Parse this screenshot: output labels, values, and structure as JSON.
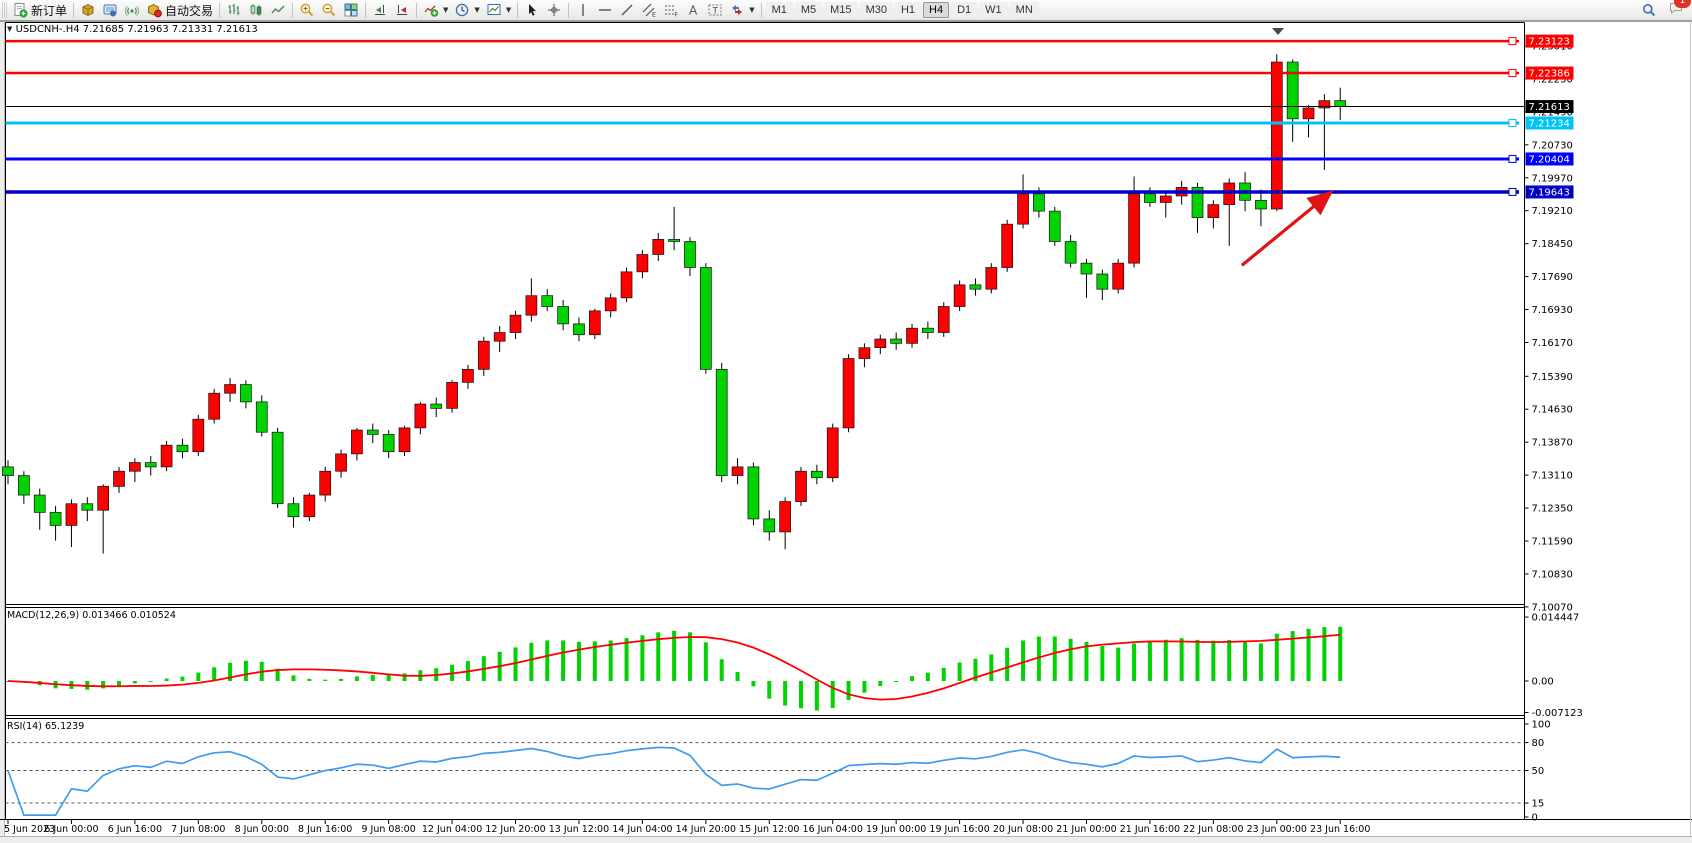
{
  "toolbar": {
    "new_order": "新订单",
    "auto_trading": "自动交易",
    "timeframes": [
      "M1",
      "M5",
      "M15",
      "M30",
      "H1",
      "H4",
      "D1",
      "W1",
      "MN"
    ],
    "active_timeframe": "H4",
    "notification_badge": "1"
  },
  "chart_data": [
    {
      "type": "candlestick",
      "symbol": "USDCNH-.H4",
      "timeframe": "H4",
      "ohlc_line": "7.21685 7.21963 7.21331 7.21613",
      "up_color": "#ff0000",
      "down_color": "#00d300",
      "y_ticks": [
        "7.23010",
        "7.22250",
        "7.21490",
        "7.20730",
        "7.19970",
        "7.19210",
        "7.18450",
        "7.17690",
        "7.16930",
        "7.16170",
        "7.15390",
        "7.14630",
        "7.13870",
        "7.13110",
        "7.12350",
        "7.11590",
        "7.10830",
        "7.10070"
      ],
      "x_labels": [
        "5 Jun 2023",
        "6 Jun 00:00",
        "6 Jun 16:00",
        "7 Jun 08:00",
        "8 Jun 00:00",
        "8 Jun 16:00",
        "9 Jun 08:00",
        "12 Jun 04:00",
        "12 Jun 20:00",
        "13 Jun 12:00",
        "14 Jun 04:00",
        "14 Jun 20:00",
        "15 Jun 12:00",
        "16 Jun 04:00",
        "19 Jun 00:00",
        "19 Jun 16:00",
        "20 Jun 08:00",
        "21 Jun 00:00",
        "21 Jun 16:00",
        "22 Jun 08:00",
        "23 Jun 00:00",
        "23 Jun 16:00"
      ],
      "hlines": [
        {
          "price": 7.23123,
          "label": "7.23123",
          "color": "#ff0000",
          "stroke_width": 2.5
        },
        {
          "price": 7.22386,
          "label": "7.22386",
          "color": "#ff0000",
          "stroke_width": 2.5
        },
        {
          "price": 7.21234,
          "label": "7.21234",
          "color": "#00c3f5",
          "stroke_width": 3
        },
        {
          "price": 7.20404,
          "label": "7.20404",
          "color": "#0000ff",
          "stroke_width": 3
        },
        {
          "price": 7.19643,
          "label": "7.19643",
          "color": "#0000c8",
          "stroke_width": 3.5
        }
      ],
      "bid": {
        "price": 7.21613,
        "label": "7.21613",
        "color": "#000000"
      },
      "arrow": {
        "color": "#e01414",
        "from_bar": 77.8,
        "from_price": 7.1795,
        "to_bar": 83.4,
        "to_price": 7.1963
      },
      "candles": [
        [
          7.133,
          7.1345,
          7.129,
          7.131
        ],
        [
          7.131,
          7.132,
          7.1245,
          7.1265
        ],
        [
          7.1265,
          7.128,
          7.1185,
          7.1225
        ],
        [
          7.1225,
          7.124,
          7.116,
          7.1195
        ],
        [
          7.1195,
          7.1255,
          7.1145,
          7.1245
        ],
        [
          7.1245,
          7.126,
          7.1205,
          7.123
        ],
        [
          7.123,
          7.129,
          7.113,
          7.1285
        ],
        [
          7.1285,
          7.133,
          7.127,
          7.132
        ],
        [
          7.132,
          7.135,
          7.1295,
          7.134
        ],
        [
          7.134,
          7.1355,
          7.131,
          7.133
        ],
        [
          7.133,
          7.139,
          7.132,
          7.138
        ],
        [
          7.138,
          7.1395,
          7.135,
          7.1365
        ],
        [
          7.1365,
          7.145,
          7.1355,
          7.144
        ],
        [
          7.144,
          7.151,
          7.143,
          7.15
        ],
        [
          7.15,
          7.1535,
          7.148,
          7.152
        ],
        [
          7.152,
          7.153,
          7.1465,
          7.148
        ],
        [
          7.148,
          7.1495,
          7.14,
          7.141
        ],
        [
          7.141,
          7.142,
          7.1235,
          7.1245
        ],
        [
          7.1245,
          7.126,
          7.119,
          7.1215
        ],
        [
          7.1215,
          7.127,
          7.1205,
          7.1265
        ],
        [
          7.1265,
          7.133,
          7.125,
          7.132
        ],
        [
          7.132,
          7.137,
          7.1305,
          7.136
        ],
        [
          7.136,
          7.142,
          7.1345,
          7.1415
        ],
        [
          7.1415,
          7.143,
          7.1385,
          7.1405
        ],
        [
          7.1405,
          7.1415,
          7.135,
          7.1365
        ],
        [
          7.1365,
          7.1425,
          7.1355,
          7.142
        ],
        [
          7.142,
          7.148,
          7.1405,
          7.1475
        ],
        [
          7.1475,
          7.149,
          7.1445,
          7.1465
        ],
        [
          7.1465,
          7.153,
          7.1455,
          7.1525
        ],
        [
          7.1525,
          7.1565,
          7.151,
          7.1555
        ],
        [
          7.1555,
          7.163,
          7.154,
          7.162
        ],
        [
          7.162,
          7.1655,
          7.1595,
          7.164
        ],
        [
          7.164,
          7.169,
          7.1625,
          7.168
        ],
        [
          7.168,
          7.1765,
          7.1665,
          7.1725
        ],
        [
          7.1725,
          7.174,
          7.169,
          7.17
        ],
        [
          7.17,
          7.1715,
          7.1645,
          7.166
        ],
        [
          7.166,
          7.1675,
          7.162,
          7.1635
        ],
        [
          7.1635,
          7.1695,
          7.1625,
          7.169
        ],
        [
          7.169,
          7.173,
          7.1675,
          7.172
        ],
        [
          7.172,
          7.179,
          7.171,
          7.178
        ],
        [
          7.178,
          7.183,
          7.1765,
          7.182
        ],
        [
          7.182,
          7.187,
          7.1805,
          7.1855
        ],
        [
          7.1855,
          7.193,
          7.183,
          7.185
        ],
        [
          7.185,
          7.186,
          7.177,
          7.179
        ],
        [
          7.179,
          7.18,
          7.1545,
          7.1555
        ],
        [
          7.1555,
          7.157,
          7.1295,
          7.131
        ],
        [
          7.131,
          7.135,
          7.129,
          7.133
        ],
        [
          7.133,
          7.134,
          7.1195,
          7.121
        ],
        [
          7.121,
          7.123,
          7.116,
          7.118
        ],
        [
          7.118,
          7.126,
          7.114,
          7.125
        ],
        [
          7.125,
          7.133,
          7.124,
          7.132
        ],
        [
          7.132,
          7.1335,
          7.129,
          7.1305
        ],
        [
          7.1305,
          7.143,
          7.1295,
          7.142
        ],
        [
          7.142,
          7.159,
          7.141,
          7.158
        ],
        [
          7.158,
          7.1615,
          7.156,
          7.1605
        ],
        [
          7.1605,
          7.1635,
          7.159,
          7.1625
        ],
        [
          7.1625,
          7.164,
          7.16,
          7.1615
        ],
        [
          7.1615,
          7.166,
          7.1605,
          7.165
        ],
        [
          7.165,
          7.1665,
          7.1625,
          7.164
        ],
        [
          7.164,
          7.171,
          7.163,
          7.17
        ],
        [
          7.17,
          7.176,
          7.169,
          7.175
        ],
        [
          7.175,
          7.1765,
          7.1725,
          7.174
        ],
        [
          7.174,
          7.18,
          7.173,
          7.179
        ],
        [
          7.179,
          7.19,
          7.178,
          7.189
        ],
        [
          7.189,
          7.2005,
          7.188,
          7.196
        ],
        [
          7.196,
          7.1975,
          7.1905,
          7.192
        ],
        [
          7.192,
          7.193,
          7.184,
          7.185
        ],
        [
          7.185,
          7.1865,
          7.179,
          7.18
        ],
        [
          7.18,
          7.181,
          7.172,
          7.1775
        ],
        [
          7.1775,
          7.1785,
          7.1715,
          7.174
        ],
        [
          7.174,
          7.181,
          7.173,
          7.18
        ],
        [
          7.18,
          7.2,
          7.179,
          7.196
        ],
        [
          7.196,
          7.1975,
          7.193,
          7.194
        ],
        [
          7.194,
          7.1965,
          7.1905,
          7.1955
        ],
        [
          7.1955,
          7.199,
          7.1935,
          7.1975
        ],
        [
          7.1975,
          7.1985,
          7.187,
          7.1905
        ],
        [
          7.1905,
          7.1945,
          7.188,
          7.1935
        ],
        [
          7.1935,
          7.1995,
          7.184,
          7.1985
        ],
        [
          7.1985,
          7.201,
          7.192,
          7.1945
        ],
        [
          7.1945,
          7.197,
          7.1885,
          7.1925
        ],
        [
          7.1925,
          7.2282,
          7.192,
          7.2264
        ],
        [
          7.2264,
          7.227,
          7.208,
          7.2133
        ],
        [
          7.2133,
          7.2165,
          7.209,
          7.2158
        ],
        [
          7.2158,
          7.219,
          7.2015,
          7.2175
        ],
        [
          7.2175,
          7.2205,
          7.213,
          7.2161
        ]
      ]
    },
    {
      "type": "bar",
      "name": "MACD",
      "label": "MACD(12,26,9)",
      "values": "0.013466 0.010524",
      "params": [
        12,
        26,
        9
      ],
      "histogram_color": "#00d300",
      "signal_color": "#ff0000",
      "y_ticks": [
        "0.014447",
        "0.00",
        "-0.007123"
      ]
    },
    {
      "type": "line",
      "name": "RSI",
      "label": "RSI(14)",
      "value": "65.1239",
      "period": 14,
      "line_color": "#3e9bf0",
      "levels": [
        80,
        50,
        15
      ],
      "y_ticks": [
        "100",
        "80",
        "50",
        "15",
        "0"
      ]
    }
  ]
}
